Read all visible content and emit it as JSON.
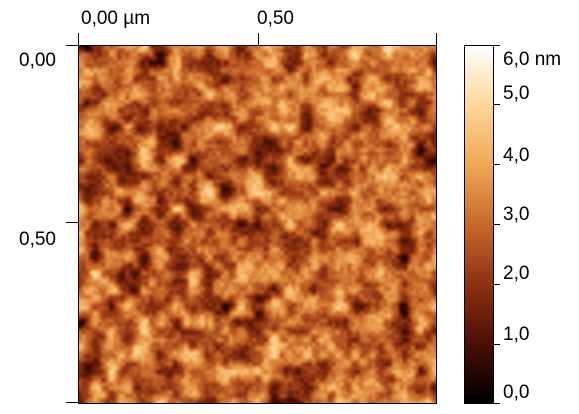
{
  "x_axis": {
    "ticks": [
      "0,00 µm",
      "0,50"
    ]
  },
  "y_axis": {
    "ticks": [
      "0,00",
      "0,50"
    ]
  },
  "colorbar": {
    "ticks": [
      "6,0 nm",
      "5,0",
      "4,0",
      "3,0",
      "2,0",
      "1,0",
      "0,0"
    ],
    "colors": [
      "#ffffff",
      "#ffd79a",
      "#f0a857",
      "#c8692b",
      "#8e3110",
      "#4a0f04",
      "#000000"
    ]
  }
}
